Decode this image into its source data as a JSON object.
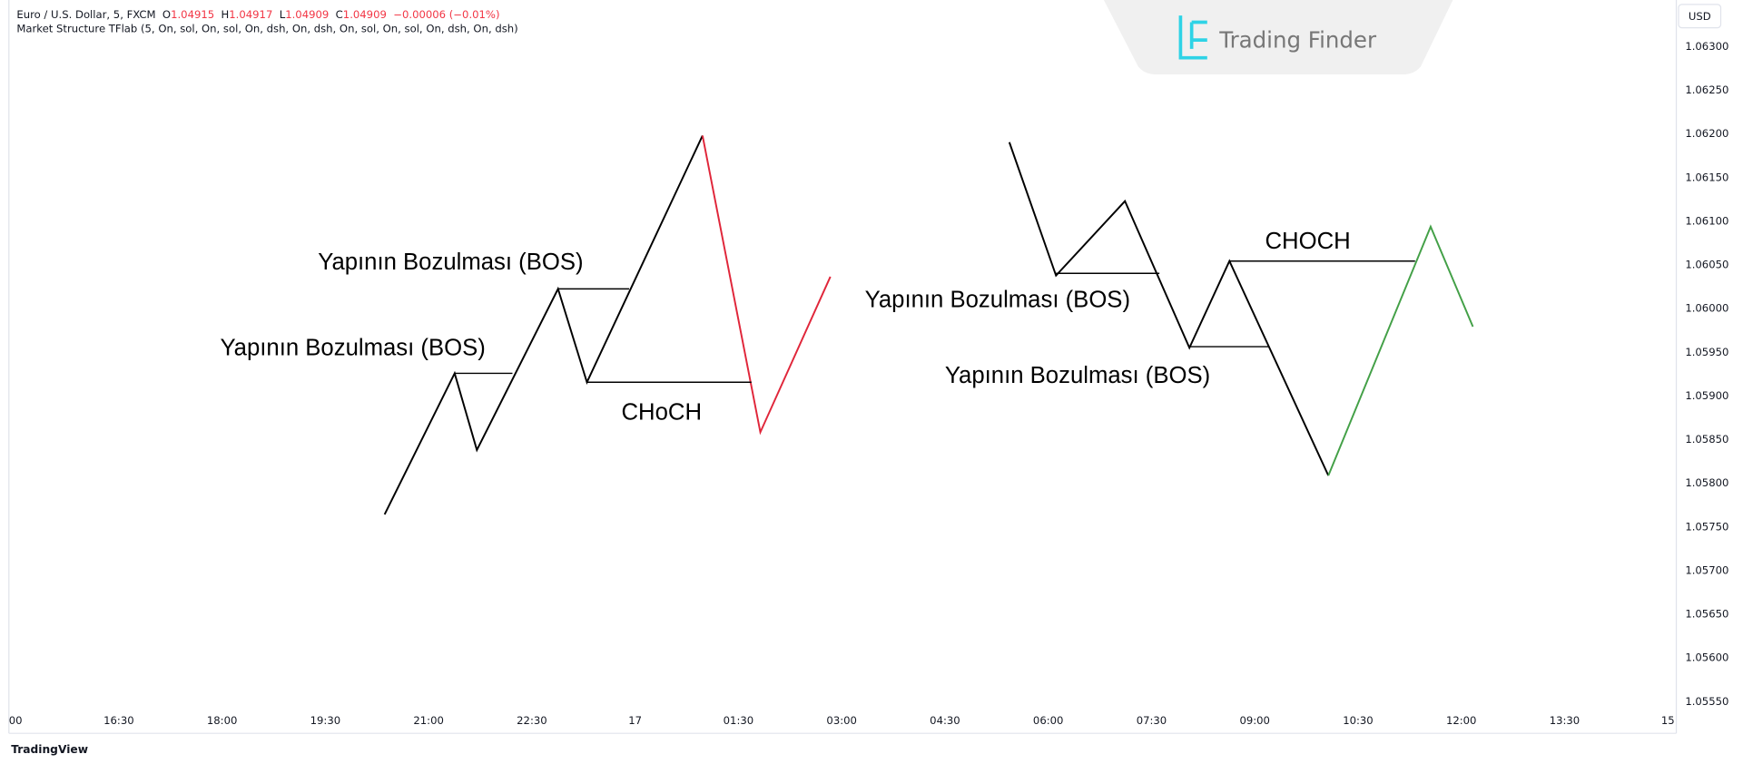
{
  "header": {
    "symbol": "Euro / U.S. Dollar, 5, FXCM",
    "ohlc": [
      {
        "key": "O",
        "value": "1.04915"
      },
      {
        "key": "H",
        "value": "1.04917"
      },
      {
        "key": "L",
        "value": "1.04909"
      },
      {
        "key": "C",
        "value": "1.04909"
      }
    ],
    "change": "−0.00006 (−0.01%)",
    "indicator": "Market Structure TFlab (5, On, sol, On, sol, On, dsh, On, dsh, On, sol, On, sol, On, dsh, On, dsh)"
  },
  "currency": "USD",
  "logo": "Trading Finder",
  "price_axis": [
    "1.06300",
    "1.06250",
    "1.06200",
    "1.06150",
    "1.06100",
    "1.06050",
    "1.06000",
    "1.05950",
    "1.05900",
    "1.05850",
    "1.05800",
    "1.05750",
    "1.05700",
    "1.05650",
    "1.05600",
    "1.05550"
  ],
  "time_axis": [
    "00",
    "16:30",
    "18:00",
    "19:30",
    "21:00",
    "22:30",
    "17",
    "01:30",
    "03:00",
    "04:30",
    "06:00",
    "07:30",
    "09:00",
    "10:30",
    "12:00",
    "13:30",
    "15"
  ],
  "annotations": [
    "Yapının Bozulması (BOS)",
    "Yapının Bozulması (BOS)",
    "CHoCH",
    "Yapının Bozulması (BOS)",
    "Yapının Bozulması (BOS)",
    "CHOCH"
  ],
  "footer": "TradingView"
}
